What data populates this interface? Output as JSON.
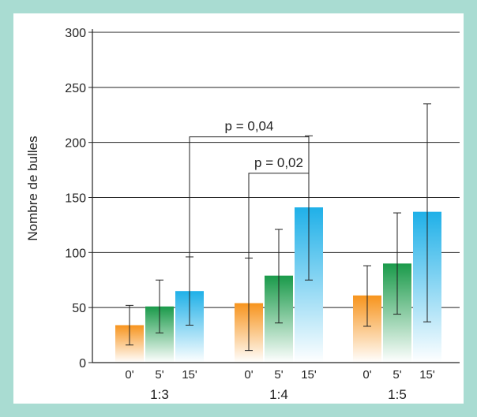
{
  "chart_data": {
    "type": "bar",
    "title": "",
    "ylabel": "Nombre de bulles",
    "xlabel": "",
    "ylim": [
      0,
      300
    ],
    "yticks": [
      0,
      50,
      100,
      150,
      200,
      250,
      300
    ],
    "grid": true,
    "groups": [
      {
        "label": "1:3",
        "bars": [
          {
            "label": "0'",
            "value": 34,
            "err_low": 16,
            "err_high": 52
          },
          {
            "label": "5'",
            "value": 51,
            "err_low": 27,
            "err_high": 75
          },
          {
            "label": "15'",
            "value": 65,
            "err_low": 34,
            "err_high": 96
          }
        ]
      },
      {
        "label": "1:4",
        "bars": [
          {
            "label": "0'",
            "value": 54,
            "err_low": 11,
            "err_high": 95
          },
          {
            "label": "5'",
            "value": 79,
            "err_low": 36,
            "err_high": 121
          },
          {
            "label": "15'",
            "value": 141,
            "err_low": 75,
            "err_high": 206
          }
        ]
      },
      {
        "label": "1:5",
        "bars": [
          {
            "label": "0'",
            "value": 61,
            "err_low": 33,
            "err_high": 88
          },
          {
            "label": "5'",
            "value": 90,
            "err_low": 44,
            "err_high": 136
          },
          {
            "label": "15'",
            "value": 137,
            "err_low": 37,
            "err_high": 235
          }
        ]
      }
    ],
    "colors": {
      "0'": "#f7941d",
      "5'": "#1a9a4a",
      "15'": "#1fb0e8"
    },
    "annotations": [
      {
        "text": "p = 0,04",
        "from": [
          0,
          2
        ],
        "to": [
          1,
          2
        ],
        "level": 205
      },
      {
        "text": "p = 0,02",
        "from": [
          1,
          0
        ],
        "to": [
          1,
          2
        ],
        "level": 172
      }
    ]
  }
}
